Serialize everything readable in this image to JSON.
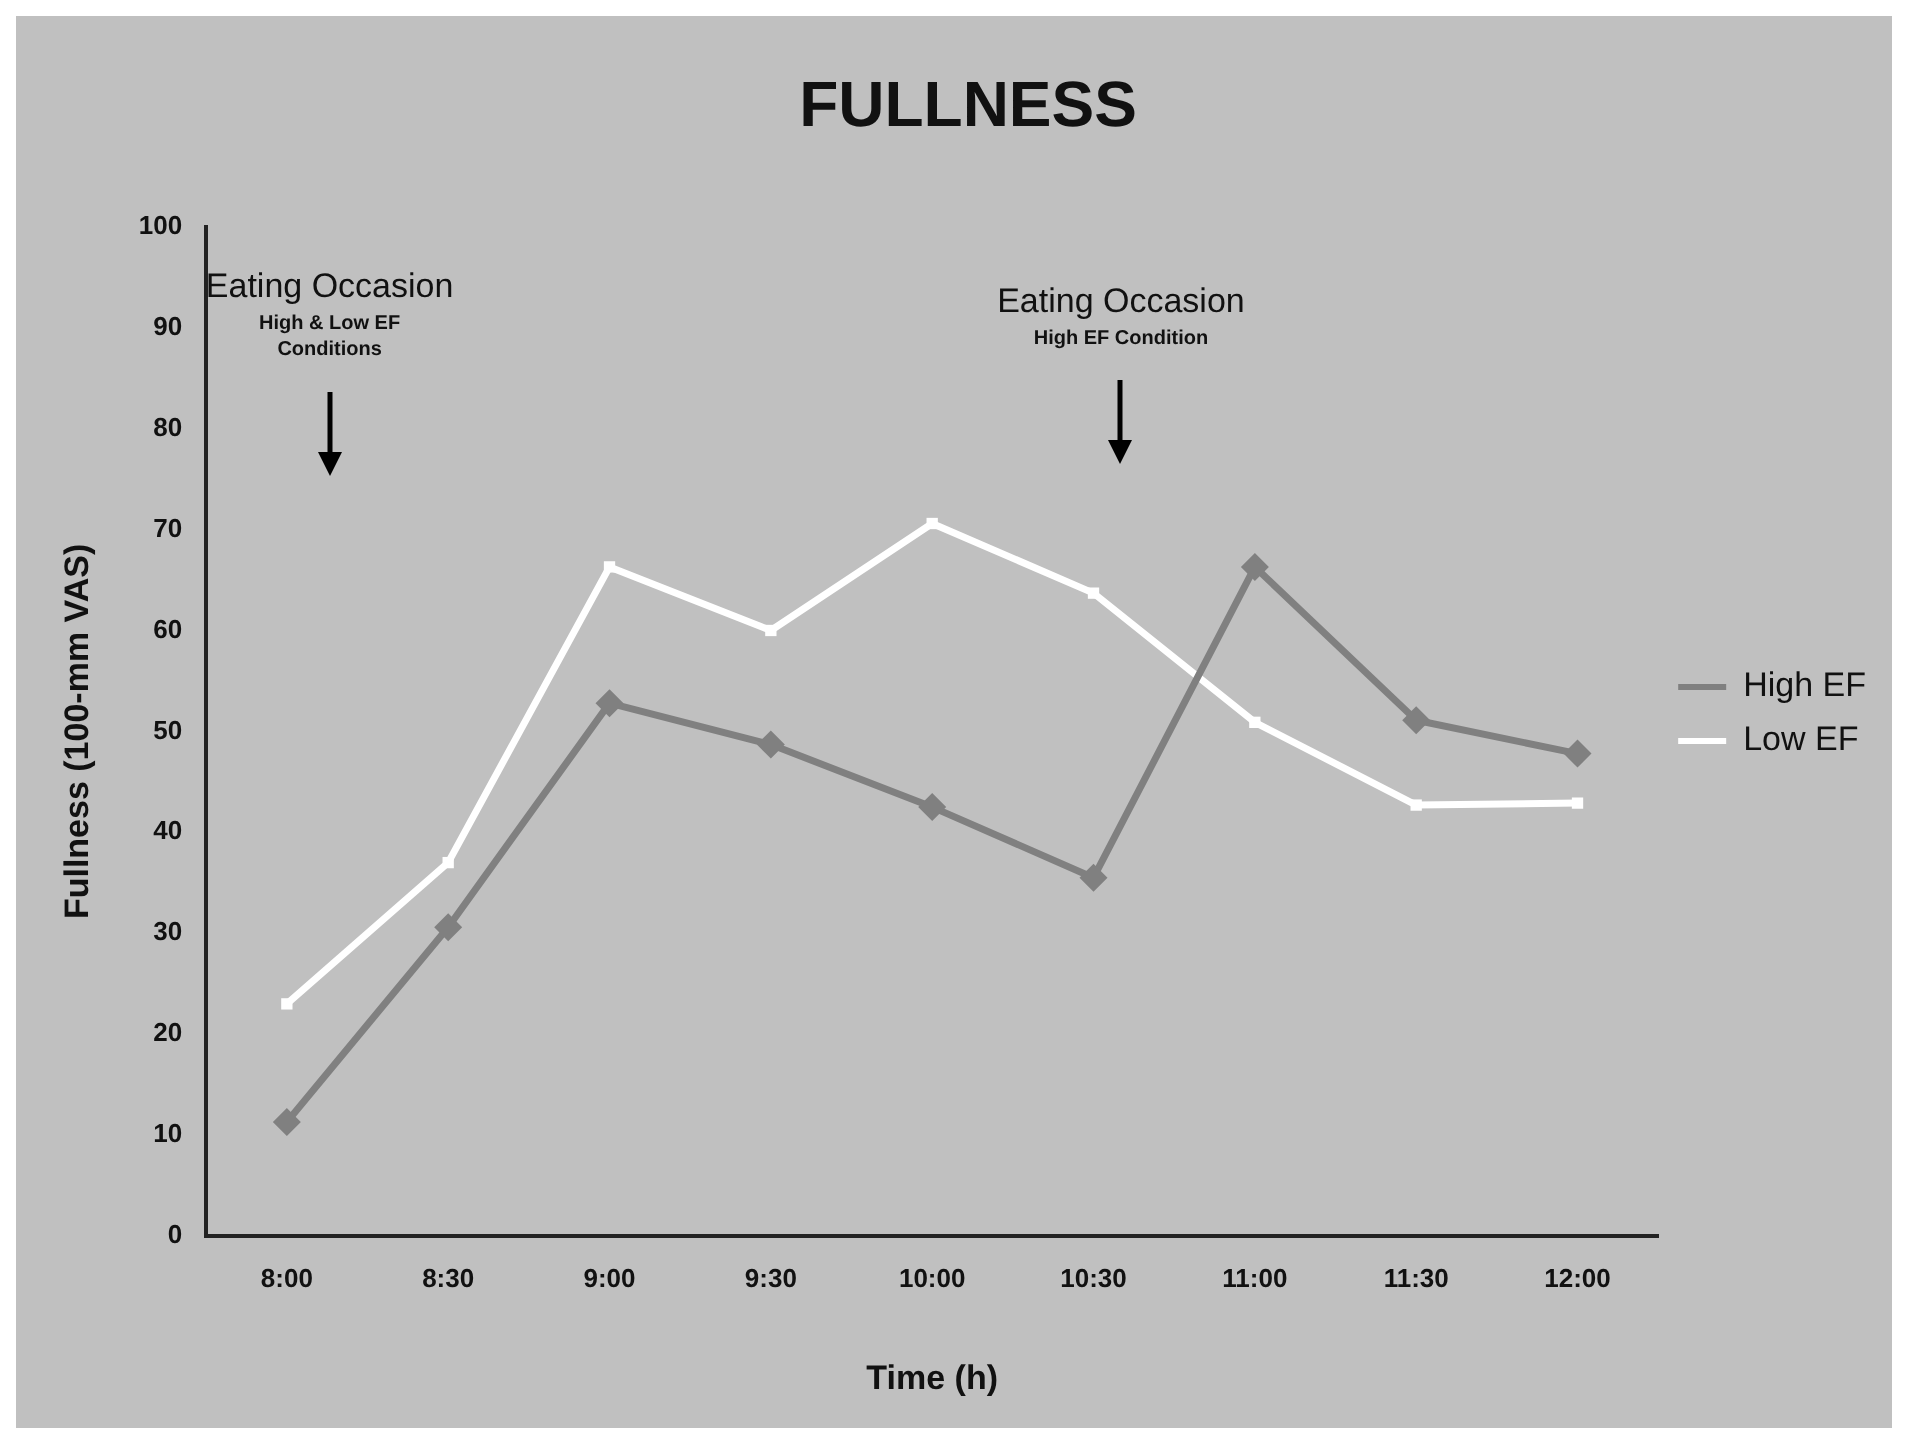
{
  "chart_data": {
    "type": "line",
    "title": "FULLNESS",
    "xlabel": "Time (h)",
    "ylabel": "Fullness (100-mm VAS)",
    "categories": [
      "8:00",
      "8:30",
      "9:00",
      "9:30",
      "10:00",
      "10:30",
      "11:00",
      "11:30",
      "12:00"
    ],
    "series": [
      {
        "name": "High EF",
        "color": "#808080",
        "marker": "diamond",
        "values": [
          11.3,
          30.6,
          52.8,
          48.7,
          42.5,
          35.5,
          66.3,
          51.1,
          47.8
        ]
      },
      {
        "name": "Low EF",
        "color": "#ffffff",
        "marker": "square",
        "values": [
          23,
          37,
          66.3,
          60,
          70.6,
          63.7,
          50.9,
          42.7,
          42.9
        ]
      }
    ],
    "ylim": [
      0,
      100
    ],
    "yticks": [
      0,
      10,
      20,
      30,
      40,
      50,
      60,
      70,
      80,
      90,
      100
    ],
    "grid": false,
    "legend": "right",
    "annotations": [
      "Eating Occasion\nHigh & Low EF Conditions",
      "Eating Occasion\nHigh EF Condition"
    ]
  }
}
